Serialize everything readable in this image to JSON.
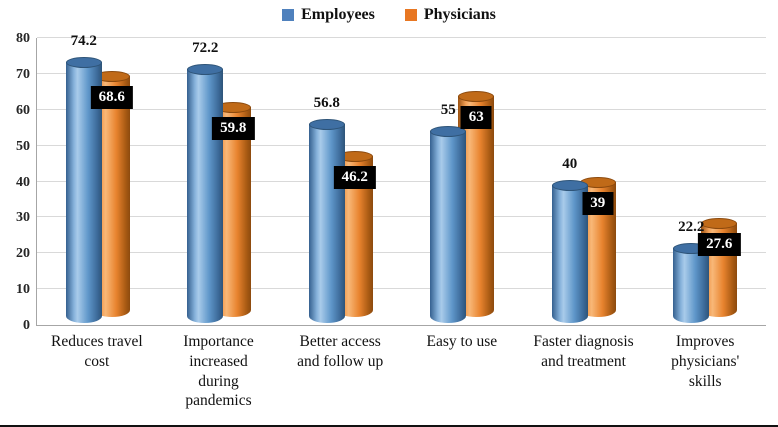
{
  "chart_data": {
    "type": "bar",
    "style": "3d-cylinder-grouped",
    "title": "",
    "categories": [
      "Reduces travel cost",
      "Importance increased during pandemics",
      "Better access and follow up",
      "Easy to use",
      "Faster diagnosis and treatment",
      "Improves physicians' skills"
    ],
    "series": [
      {
        "name": "Employees",
        "color": "#4f81bd",
        "values": [
          74.2,
          72.2,
          56.8,
          55,
          40,
          22.2
        ]
      },
      {
        "name": "Physicians",
        "color": "#e87722",
        "values": [
          68.6,
          59.8,
          46.2,
          63,
          39,
          27.6
        ]
      }
    ],
    "ylim": [
      0,
      80
    ],
    "ytick_step": 10,
    "ytick_labels": [
      "0",
      "10",
      "20",
      "30",
      "40",
      "50",
      "60",
      "70",
      "80"
    ],
    "grid": true,
    "legend_position": "top",
    "value_label_style": {
      "Employees": "bold black text above bar",
      "Physicians": "white bold text in black box on bar"
    },
    "label_box_color": "#000000"
  }
}
